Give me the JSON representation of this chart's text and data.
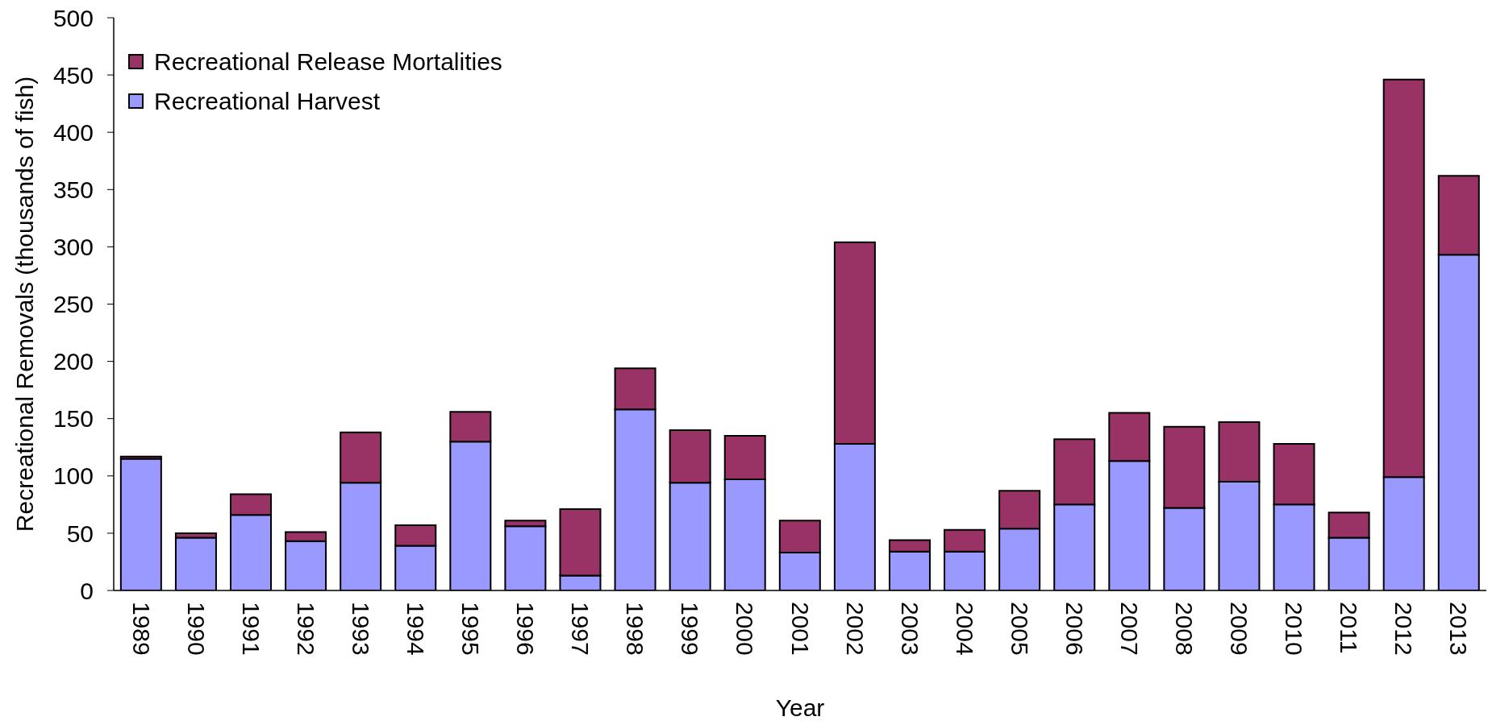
{
  "chart_data": {
    "type": "bar",
    "stacked": true,
    "xlabel": "Year",
    "ylabel": "Recreational Removals (thousands of fish)",
    "categories": [
      "1989",
      "1990",
      "1991",
      "1992",
      "1993",
      "1994",
      "1995",
      "1996",
      "1997",
      "1998",
      "1999",
      "2000",
      "2001",
      "2002",
      "2003",
      "2004",
      "2005",
      "2006",
      "2007",
      "2008",
      "2009",
      "2010",
      "2011",
      "2012",
      "2013"
    ],
    "series": [
      {
        "name": "Recreational Harvest",
        "color": "#9999ff",
        "values": [
          115,
          46,
          66,
          43,
          94,
          39,
          130,
          56,
          13,
          158,
          94,
          97,
          33,
          128,
          34,
          34,
          54,
          75,
          113,
          72,
          95,
          75,
          46,
          99,
          293
        ]
      },
      {
        "name": "Recreational Release Mortalities",
        "color": "#993366",
        "values": [
          2,
          4,
          18,
          8,
          44,
          18,
          26,
          5,
          58,
          36,
          46,
          38,
          28,
          176,
          10,
          19,
          33,
          57,
          42,
          71,
          52,
          53,
          22,
          347,
          69
        ]
      }
    ],
    "ylim": [
      0,
      500
    ],
    "yticks": [
      0,
      50,
      100,
      150,
      200,
      250,
      300,
      350,
      400,
      450,
      500
    ],
    "legend": "top left"
  }
}
